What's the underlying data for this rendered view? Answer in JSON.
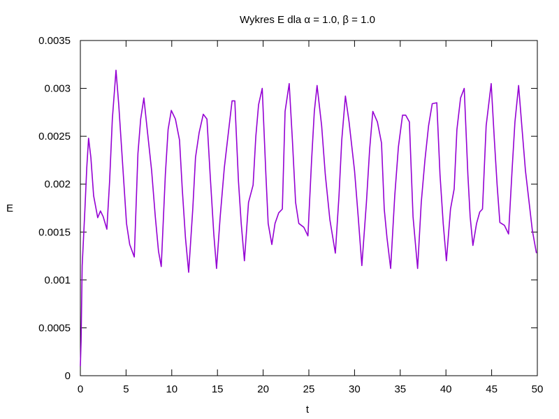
{
  "chart_data": {
    "type": "line",
    "title": "Wykres E dla  α = 1.0,  β = 1.0",
    "x_label": "t",
    "y_label": "E",
    "xlim": [
      0,
      50
    ],
    "ylim": [
      0,
      0.0035
    ],
    "xticks": [
      0,
      5,
      10,
      15,
      20,
      25,
      30,
      35,
      40,
      45,
      50
    ],
    "yticks": [
      0,
      0.0005,
      0.001,
      0.0015,
      0.002,
      0.0025,
      0.003,
      0.0035
    ],
    "grid": false,
    "series": [
      {
        "name": null,
        "color": "#9400d3",
        "x": [
          0,
          0.08,
          0.2,
          0.5,
          0.7,
          0.9,
          1.15,
          1.45,
          1.9,
          2.2,
          2.5,
          2.9,
          3.2,
          3.5,
          3.9,
          4.2,
          4.7,
          5.05,
          5.4,
          5.9,
          6.3,
          6.6,
          6.95,
          7.35,
          7.8,
          8.2,
          8.55,
          8.85,
          9.3,
          9.6,
          9.95,
          10.4,
          10.85,
          11.15,
          11.5,
          11.85,
          12.3,
          12.6,
          13.0,
          13.45,
          13.85,
          14.2,
          14.6,
          14.9,
          15.3,
          15.75,
          16.1,
          16.6,
          16.9,
          17.3,
          17.6,
          17.95,
          18.4,
          18.9,
          19.2,
          19.5,
          19.9,
          20.3,
          20.55,
          20.95,
          21.3,
          21.7,
          22.1,
          22.4,
          22.85,
          23.2,
          23.55,
          23.9,
          24.45,
          24.9,
          25.3,
          25.6,
          25.9,
          26.4,
          26.8,
          27.3,
          27.9,
          28.3,
          28.6,
          29.0,
          29.4,
          30.0,
          30.4,
          30.8,
          31.3,
          31.65,
          32.0,
          32.5,
          32.95,
          33.25,
          33.55,
          33.95,
          34.4,
          34.8,
          35.25,
          35.6,
          36.0,
          36.4,
          36.9,
          37.3,
          37.7,
          38.1,
          38.5,
          39.0,
          39.35,
          39.7,
          40.05,
          40.5,
          40.9,
          41.2,
          41.6,
          42.0,
          42.4,
          42.65,
          42.95,
          43.35,
          43.7,
          44.0,
          44.4,
          44.95,
          45.3,
          45.6,
          45.9,
          46.4,
          46.85,
          47.25,
          47.55,
          47.95,
          48.3,
          48.7,
          49.1,
          49.45,
          49.9
        ],
        "values": [
          0.0001,
          0.00036,
          0.00115,
          0.00174,
          0.00217,
          0.00248,
          0.00228,
          0.00188,
          0.00165,
          0.00172,
          0.00166,
          0.00153,
          0.00203,
          0.00268,
          0.00319,
          0.00283,
          0.0021,
          0.00159,
          0.00137,
          0.00124,
          0.00232,
          0.00268,
          0.0029,
          0.00254,
          0.00214,
          0.00166,
          0.0013,
          0.00114,
          0.0021,
          0.00257,
          0.00277,
          0.00268,
          0.00246,
          0.00195,
          0.00144,
          0.00108,
          0.00174,
          0.00228,
          0.00254,
          0.00273,
          0.00268,
          0.0021,
          0.00148,
          0.00112,
          0.00166,
          0.00217,
          0.00246,
          0.00287,
          0.00287,
          0.00203,
          0.00159,
          0.0012,
          0.00181,
          0.00199,
          0.0025,
          0.00283,
          0.003,
          0.0021,
          0.00159,
          0.00137,
          0.00159,
          0.0017,
          0.00174,
          0.00276,
          0.00305,
          0.00246,
          0.00181,
          0.00159,
          0.00155,
          0.00146,
          0.00225,
          0.00276,
          0.00303,
          0.00261,
          0.0021,
          0.00163,
          0.00128,
          0.00188,
          0.00246,
          0.00292,
          0.00265,
          0.00214,
          0.00166,
          0.00115,
          0.00181,
          0.00236,
          0.00276,
          0.00265,
          0.00243,
          0.00174,
          0.00144,
          0.00112,
          0.00188,
          0.00239,
          0.00272,
          0.00272,
          0.00265,
          0.00166,
          0.00112,
          0.00181,
          0.00225,
          0.00261,
          0.00284,
          0.00285,
          0.0021,
          0.00159,
          0.0012,
          0.00174,
          0.00195,
          0.00257,
          0.0029,
          0.003,
          0.0021,
          0.00166,
          0.00136,
          0.00159,
          0.00171,
          0.00174,
          0.00261,
          0.00305,
          0.00246,
          0.00199,
          0.0016,
          0.00157,
          0.00148,
          0.00217,
          0.00265,
          0.00303,
          0.00261,
          0.00214,
          0.00181,
          0.00152,
          0.00128
        ]
      }
    ]
  }
}
